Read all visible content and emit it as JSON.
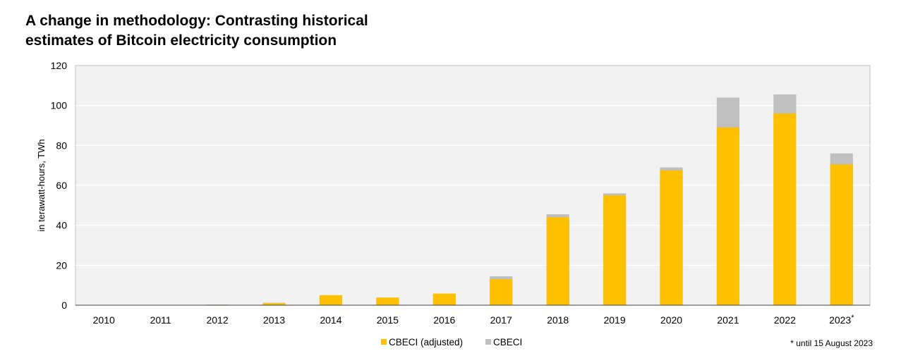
{
  "title_lines": [
    "A change in methodology: Contrasting historical",
    "estimates of Bitcoin electricity consumption"
  ],
  "footnote": "* until 15 August 2023",
  "colors": {
    "adjusted": "#FFC000",
    "cbeci": "#BFBFBF",
    "plot_bg": "#F2F2F2",
    "grid": "#FFFFFF"
  },
  "chart_data": {
    "type": "bar",
    "stacking": "overlay",
    "title": "A change in methodology: Contrasting historical estimates of Bitcoin electricity consumption",
    "xlabel": "",
    "ylabel": "in terawatt-hours, TWh",
    "ylim": [
      0,
      120
    ],
    "yticks": [
      0,
      20,
      40,
      60,
      80,
      100,
      120
    ],
    "grid": true,
    "legend_position": "bottom",
    "categories": [
      "2010",
      "2011",
      "2012",
      "2013",
      "2014",
      "2015",
      "2016",
      "2017",
      "2018",
      "2019",
      "2020",
      "2021",
      "2022",
      "2023"
    ],
    "category_suffix": {
      "2023": "*"
    },
    "series": [
      {
        "name": "CBECI (adjusted)",
        "values": [
          0,
          0,
          0.2,
          1,
          5,
          3.8,
          5.8,
          13,
          44,
          55,
          67.5,
          89,
          96,
          70.5
        ]
      },
      {
        "name": "CBECI",
        "values": [
          0,
          0,
          0.3,
          1.2,
          5,
          3.8,
          5.8,
          14.5,
          45.5,
          56,
          69,
          104,
          105.5,
          76
        ]
      }
    ]
  }
}
